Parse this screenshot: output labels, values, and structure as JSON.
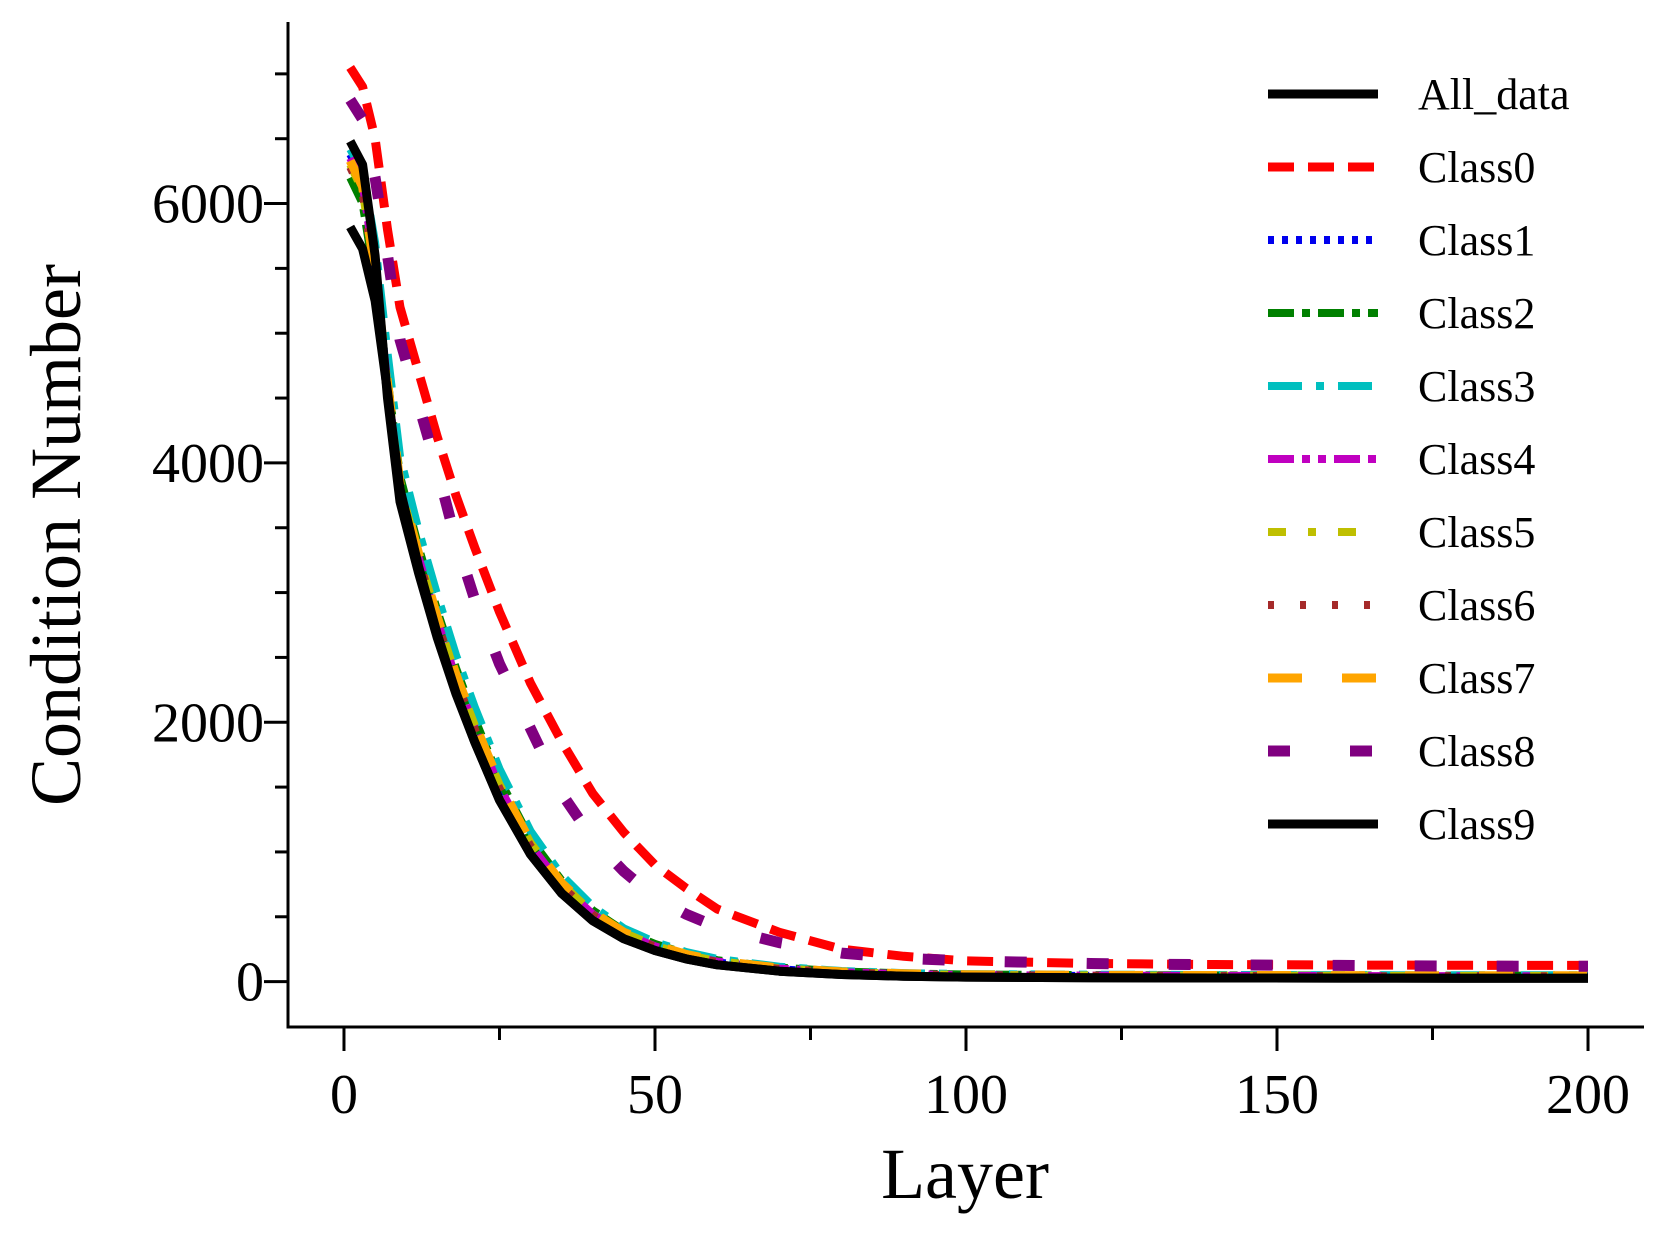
{
  "chart_data": {
    "type": "line",
    "title": "",
    "xlabel": "Layer",
    "ylabel": "Condition Number",
    "xlim": [
      -9,
      209
    ],
    "ylim": [
      -350,
      7400
    ],
    "xticks": [
      0,
      50,
      100,
      150,
      200
    ],
    "xtick_labels": [
      "0",
      "50",
      "100",
      "150",
      "200"
    ],
    "xminor": [
      25,
      75,
      125,
      175
    ],
    "yticks": [
      0,
      2000,
      4000,
      6000
    ],
    "ytick_labels": [
      "0",
      "2000",
      "4000",
      "6000"
    ],
    "yminor": [
      500,
      1000,
      1500,
      2500,
      3000,
      3500,
      4500,
      5000,
      5500,
      6500,
      7000
    ],
    "grid": false,
    "legend_position": "top-right",
    "x": [
      1,
      3,
      5,
      7,
      9,
      12,
      15,
      18,
      21,
      25,
      30,
      35,
      40,
      45,
      50,
      55,
      60,
      70,
      80,
      90,
      100,
      120,
      140,
      160,
      180,
      200
    ],
    "series": [
      {
        "name": "All_data",
        "color": "#000000",
        "dash": "",
        "width": 9,
        "values": [
          6480,
          6300,
          5600,
          4500,
          3700,
          3150,
          2650,
          2220,
          1850,
          1400,
          980,
          680,
          470,
          330,
          240,
          175,
          130,
          80,
          55,
          42,
          35,
          30,
          28,
          27,
          26,
          26
        ]
      },
      {
        "name": "Class0",
        "color": "#ff0000",
        "dash": "26 14",
        "width": 9,
        "values": [
          7050,
          6900,
          6500,
          5800,
          5200,
          4700,
          4200,
          3750,
          3350,
          2850,
          2300,
          1850,
          1450,
          1150,
          900,
          720,
          560,
          380,
          250,
          195,
          160,
          140,
          132,
          128,
          126,
          125
        ]
      },
      {
        "name": "Class1",
        "color": "#0000ee",
        "dash": "6 8",
        "width": 8,
        "values": [
          6380,
          6200,
          5500,
          4600,
          3780,
          3250,
          2760,
          2320,
          1940,
          1480,
          1040,
          730,
          510,
          360,
          265,
          195,
          148,
          95,
          68,
          55,
          48,
          44,
          42,
          41,
          40,
          40
        ]
      },
      {
        "name": "Class2",
        "color": "#008000",
        "dash": "26 8 8 8",
        "width": 8,
        "values": [
          6200,
          6000,
          5400,
          4650,
          3900,
          3350,
          2860,
          2420,
          2030,
          1560,
          1100,
          780,
          550,
          390,
          290,
          215,
          165,
          108,
          78,
          63,
          55,
          50,
          48,
          47,
          46,
          46
        ]
      },
      {
        "name": "Class3",
        "color": "#00bfbf",
        "dash": "34 14 8 14",
        "width": 8,
        "values": [
          6420,
          6250,
          5700,
          4850,
          4050,
          3480,
          2980,
          2520,
          2120,
          1640,
          1160,
          820,
          580,
          410,
          305,
          228,
          175,
          115,
          82,
          66,
          58,
          53,
          51,
          50,
          49,
          49
        ]
      },
      {
        "name": "Class4",
        "color": "#c000c0",
        "dash": "26 8 8 8 8 8",
        "width": 8,
        "values": [
          6350,
          6150,
          5500,
          4600,
          3800,
          3270,
          2780,
          2340,
          1960,
          1500,
          1050,
          740,
          520,
          368,
          272,
          202,
          154,
          100,
          72,
          58,
          50,
          46,
          44,
          43,
          42,
          42
        ]
      },
      {
        "name": "Class5",
        "color": "#bfbf00",
        "dash": "18 22 8 22",
        "width": 8,
        "values": [
          6300,
          6100,
          5450,
          4600,
          3820,
          3290,
          2800,
          2360,
          1980,
          1520,
          1070,
          755,
          530,
          376,
          278,
          207,
          158,
          103,
          74,
          60,
          52,
          48,
          46,
          45,
          44,
          44
        ]
      },
      {
        "name": "Class6",
        "color": "#a52a2a",
        "dash": "6 26",
        "width": 8,
        "values": [
          6280,
          6080,
          5420,
          4570,
          3790,
          3260,
          2770,
          2330,
          1950,
          1490,
          1045,
          735,
          515,
          364,
          268,
          199,
          152,
          98,
          70,
          57,
          49,
          45,
          43,
          42,
          41,
          41
        ]
      },
      {
        "name": "Class7",
        "color": "#ffa500",
        "dash": "34 40",
        "width": 9,
        "values": [
          6330,
          6130,
          5470,
          4620,
          3840,
          3300,
          2810,
          2370,
          1990,
          1530,
          1075,
          760,
          535,
          380,
          282,
          210,
          160,
          105,
          75,
          61,
          53,
          49,
          47,
          46,
          45,
          45
        ]
      },
      {
        "name": "Class8",
        "color": "#800080",
        "dash": "22 60",
        "width": 11,
        "values": [
          6800,
          6650,
          6200,
          5600,
          4950,
          4450,
          3950,
          3400,
          2950,
          2450,
          1950,
          1450,
          1100,
          850,
          650,
          520,
          420,
          300,
          220,
          180,
          160,
          140,
          130,
          125,
          120,
          118
        ]
      },
      {
        "name": "Class9",
        "color": "#000000",
        "dash": "",
        "width": 9,
        "values": [
          5820,
          5650,
          5250,
          4550,
          3800,
          3200,
          2680,
          2230,
          1850,
          1400,
          980,
          680,
          470,
          330,
          240,
          175,
          130,
          80,
          55,
          42,
          35,
          30,
          28,
          27,
          26,
          26
        ]
      }
    ]
  }
}
